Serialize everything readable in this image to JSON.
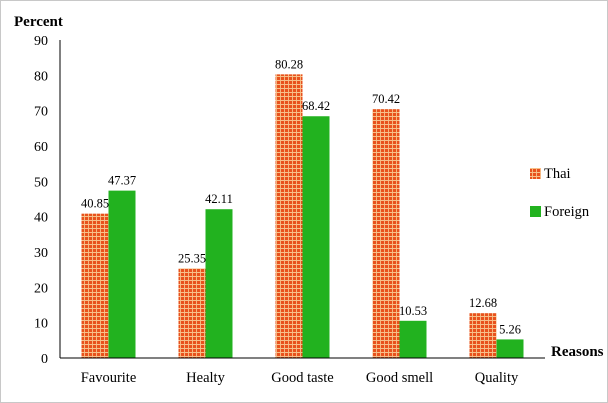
{
  "chart_data": {
    "type": "bar",
    "ylabel": "Percent",
    "xlabel": "Reasons",
    "ylim": [
      0,
      90
    ],
    "yticks": [
      0,
      10,
      20,
      30,
      40,
      50,
      60,
      70,
      80,
      90
    ],
    "categories": [
      "Favourite",
      "Healty",
      "Good taste",
      "Good smell",
      "Quality"
    ],
    "series": [
      {
        "name": "Thai",
        "values": [
          40.85,
          25.35,
          80.28,
          70.42,
          12.68
        ],
        "value_labels": [
          "40.85",
          "25.35",
          "80.28",
          "70.42",
          "12.68"
        ],
        "color": "#e03c1e",
        "pattern": "grid-orange"
      },
      {
        "name": "Foreign",
        "values": [
          47.37,
          42.11,
          68.42,
          10.53,
          5.26
        ],
        "value_labels": [
          "47.37",
          "42.11",
          "68.42",
          "10.53",
          "5.26"
        ],
        "color": "#22b21f"
      }
    ],
    "legend": "right",
    "grid": false
  }
}
